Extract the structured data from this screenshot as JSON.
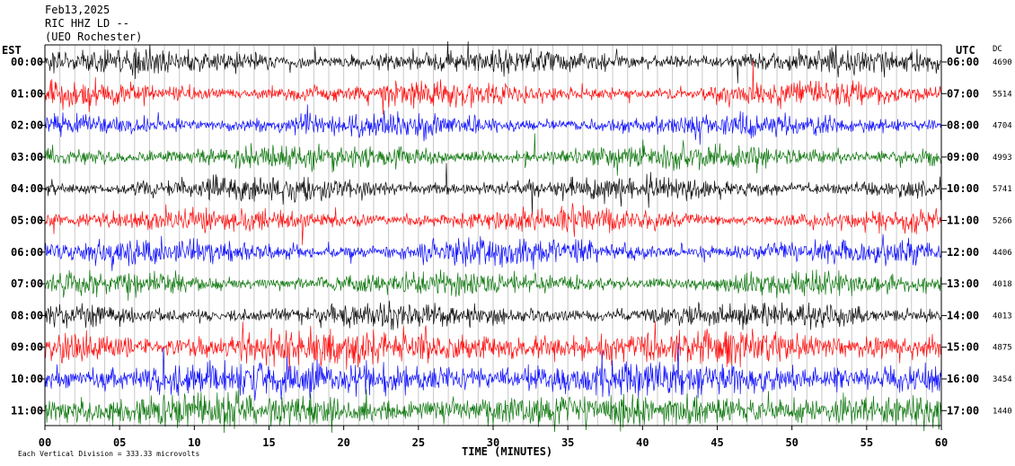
{
  "header": {
    "date": "Feb13,2025",
    "channel": "RIC HHZ LD --",
    "site": "(UEO Rochester)"
  },
  "footer": {
    "scale_note": "Each Vertical Division = 333.33 microvolts"
  },
  "chart_data": {
    "type": "line",
    "title": "",
    "xlabel": "TIME (MINUTES)",
    "left_axis_label": "EST",
    "right_axis_label": "UTC",
    "dc_label": "DC",
    "x_range": [
      0,
      60
    ],
    "x_ticks": [
      "00",
      "05",
      "10",
      "15",
      "20",
      "25",
      "30",
      "35",
      "40",
      "45",
      "50",
      "55",
      "60"
    ],
    "trace_colors": [
      "#000000",
      "#ff0000",
      "#0000ff",
      "#007000"
    ],
    "rows": [
      {
        "est": "00:00",
        "utc": "06:00",
        "dc": "4690"
      },
      {
        "est": "01:00",
        "utc": "07:00",
        "dc": "5514"
      },
      {
        "est": "02:00",
        "utc": "08:00",
        "dc": "4704"
      },
      {
        "est": "03:00",
        "utc": "09:00",
        "dc": "4993"
      },
      {
        "est": "04:00",
        "utc": "10:00",
        "dc": "5741"
      },
      {
        "est": "05:00",
        "utc": "11:00",
        "dc": "5266"
      },
      {
        "est": "06:00",
        "utc": "12:00",
        "dc": "4406"
      },
      {
        "est": "07:00",
        "utc": "13:00",
        "dc": "4018"
      },
      {
        "est": "08:00",
        "utc": "14:00",
        "dc": "4013"
      },
      {
        "est": "09:00",
        "utc": "15:00",
        "dc": "4875"
      },
      {
        "est": "10:00",
        "utc": "16:00",
        "dc": "3454"
      },
      {
        "est": "11:00",
        "utc": "17:00",
        "dc": "1440"
      }
    ]
  }
}
